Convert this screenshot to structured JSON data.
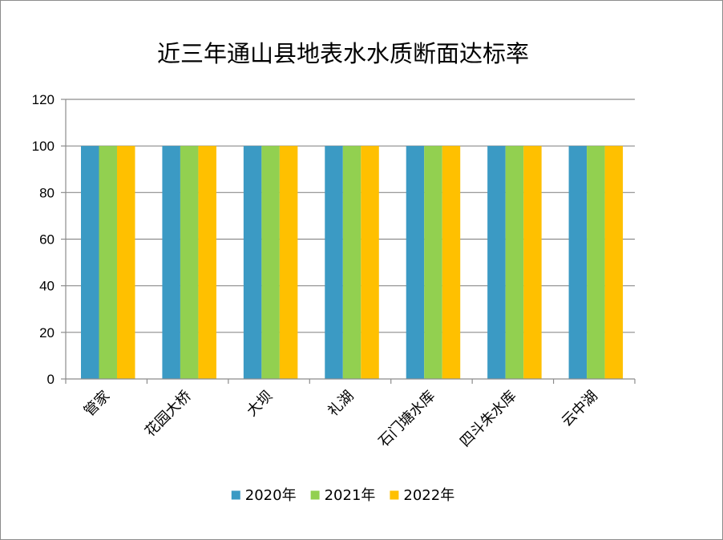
{
  "chart_data": {
    "type": "bar",
    "title": "近三年通山县地表水水质断面达标率",
    "xlabel": "",
    "ylabel": "",
    "categories": [
      "管家",
      "花园大桥",
      "大坝",
      "礼湖",
      "石门塘水库",
      "四斗朱水库",
      "云中湖"
    ],
    "series": [
      {
        "name": "2020年",
        "color": "#3B9AC4",
        "values": [
          100,
          100,
          100,
          100,
          100,
          100,
          100
        ]
      },
      {
        "name": "2021年",
        "color": "#92D050",
        "values": [
          100,
          100,
          100,
          100,
          100,
          100,
          100
        ]
      },
      {
        "name": "2022年",
        "color": "#FFC000",
        "values": [
          100,
          100,
          100,
          100,
          100,
          100,
          100
        ]
      }
    ],
    "ylim": [
      0,
      120
    ],
    "yticks": [
      0,
      20,
      40,
      60,
      80,
      100,
      120
    ],
    "grid": true,
    "legend_position": "bottom"
  }
}
